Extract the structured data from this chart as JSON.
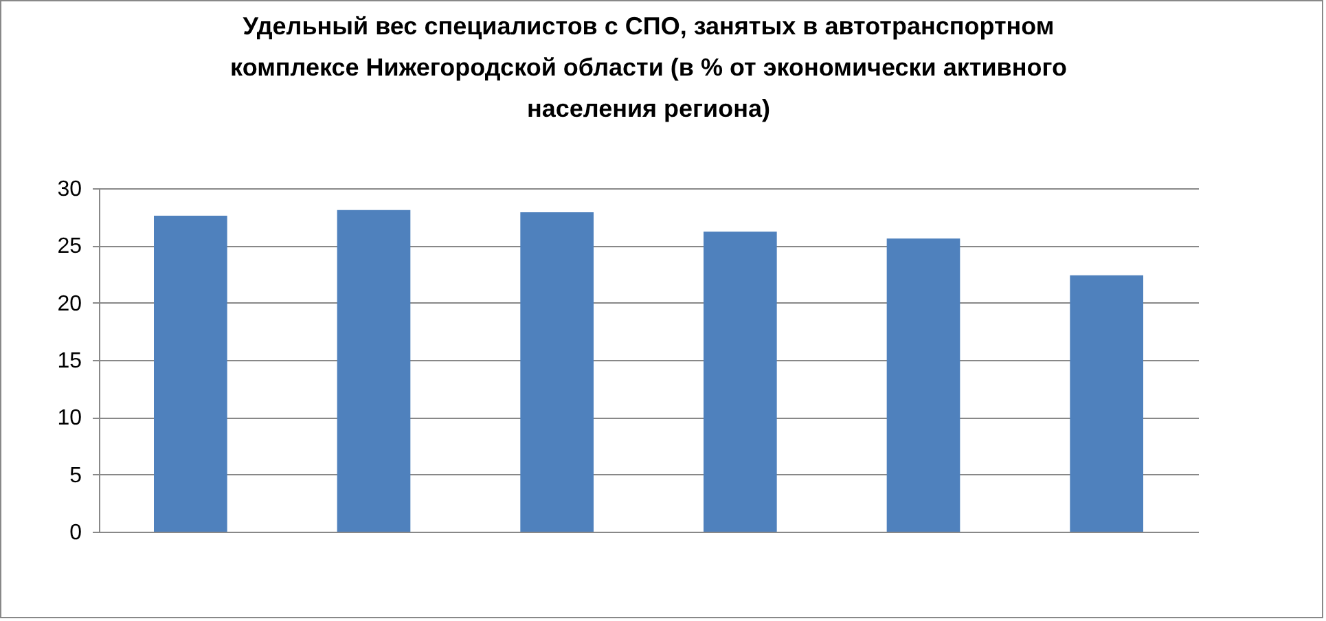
{
  "chart_data": {
    "type": "bar",
    "title": "Удельный вес специалистов с СПО, занятых в автотранспортном комплексе Нижегородской области (в % от экономически активного населения региона)",
    "categories": [
      null,
      null,
      null,
      null,
      null,
      null
    ],
    "values": [
      27.6,
      28.1,
      27.9,
      26.2,
      25.6,
      22.4
    ],
    "color": "#4f81bd",
    "ylim": [
      0,
      30
    ],
    "yticks": [
      0,
      5,
      10,
      15,
      20,
      25,
      30
    ],
    "grid": "y",
    "tick_labels": "y"
  }
}
